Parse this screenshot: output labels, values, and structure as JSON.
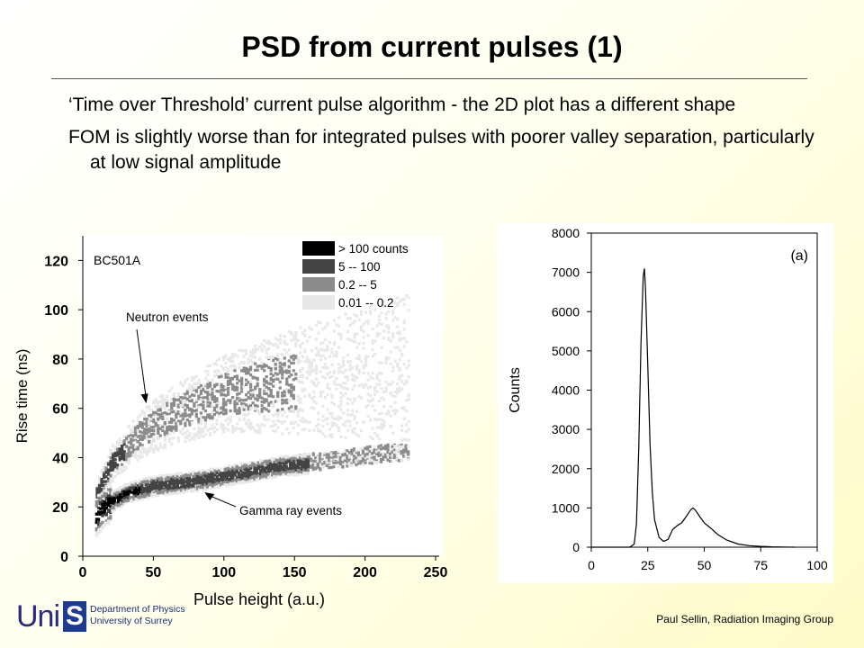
{
  "slide": {
    "title": "PSD from current pulses (1)",
    "bullets": [
      "‘Time over Threshold’ current pulse algorithm - the 2D plot has a different shape",
      "FOM is slightly worse than for integrated pulses with poorer valley separation, particularly at low signal amplitude"
    ],
    "footer_credit": "Paul Sellin, Radiation Imaging Group",
    "logo": {
      "uni": "Uni",
      "s": "S",
      "line1": "Department of Physics",
      "line2": "University of Surrey"
    }
  },
  "colors": {
    "dark": "#000000",
    "mid_dark": "#444444",
    "mid": "#8c8c8c",
    "light": "#e8e8e8",
    "line": "#000000"
  },
  "chart_data": [
    {
      "type": "heatmap",
      "title": "BC501A",
      "xlabel": "Pulse height (a.u.)",
      "ylabel": "Rise time (ns)",
      "xlim": [
        0,
        250
      ],
      "ylim": [
        0,
        130
      ],
      "x_ticks": [
        0,
        50,
        100,
        150,
        200,
        250
      ],
      "y_ticks": [
        0,
        20,
        40,
        60,
        80,
        100,
        120
      ],
      "legend": [
        {
          "label": "> 100 counts",
          "color": "#000000"
        },
        {
          "label": "5  --  100",
          "color": "#444444"
        },
        {
          "label": "0.2  --  5",
          "color": "#8c8c8c"
        },
        {
          "label": "0.01  --  0.2",
          "color": "#e8e8e8"
        }
      ],
      "legend_position": "top-right",
      "annotations": [
        {
          "text": "Neutron events",
          "points_to": [
            45,
            62
          ]
        },
        {
          "text": "Gamma ray events",
          "points_to": [
            85,
            27
          ]
        }
      ],
      "bands": {
        "gamma_center": [
          [
            8,
            16
          ],
          [
            15,
            21
          ],
          [
            30,
            26
          ],
          [
            50,
            29
          ],
          [
            80,
            31
          ],
          [
            110,
            34
          ],
          [
            140,
            37
          ],
          [
            160,
            38
          ]
        ],
        "neutron_center": [
          [
            8,
            24
          ],
          [
            20,
            38
          ],
          [
            40,
            50
          ],
          [
            60,
            57
          ],
          [
            80,
            62
          ],
          [
            100,
            66
          ],
          [
            130,
            70
          ],
          [
            160,
            72
          ],
          [
            200,
            75
          ],
          [
            230,
            77
          ]
        ],
        "gamma_tail": [
          [
            150,
            38
          ],
          [
            180,
            40
          ],
          [
            210,
            42
          ],
          [
            230,
            43
          ]
        ]
      }
    },
    {
      "type": "line",
      "title": "(a)",
      "xlabel": "",
      "ylabel": "Counts",
      "xlim": [
        0,
        100
      ],
      "ylim": [
        0,
        8000
      ],
      "x_ticks": [
        0,
        25,
        50,
        75,
        100
      ],
      "y_ticks": [
        0,
        1000,
        2000,
        3000,
        4000,
        5000,
        6000,
        7000,
        8000
      ],
      "series": [
        {
          "x": [
            0,
            10,
            17,
            19,
            20,
            21,
            22,
            23,
            23.5,
            24,
            25,
            26,
            27,
            28,
            30,
            32,
            34,
            36,
            38,
            40,
            42,
            44,
            45,
            46,
            48,
            50,
            53,
            56,
            60,
            65,
            70,
            75,
            80,
            85,
            90
          ],
          "values": [
            0,
            0,
            0,
            80,
            600,
            2500,
            5200,
            6900,
            7100,
            6600,
            4600,
            2600,
            1400,
            700,
            250,
            150,
            200,
            450,
            550,
            620,
            780,
            950,
            1000,
            950,
            780,
            620,
            480,
            320,
            180,
            80,
            40,
            20,
            10,
            5,
            0
          ]
        }
      ]
    }
  ]
}
